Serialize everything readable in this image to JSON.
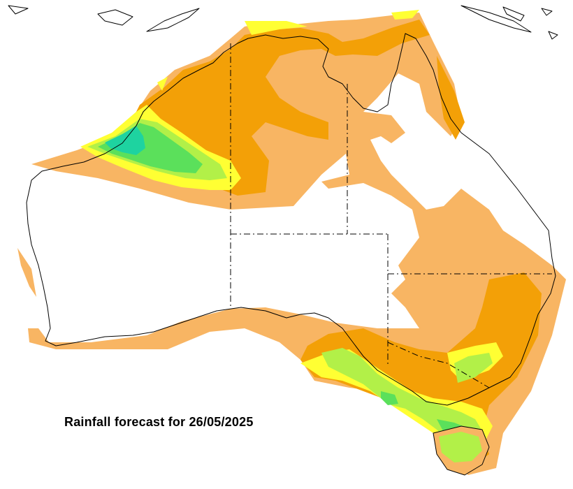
{
  "title": "Rainfall forecast for 26/05/2025",
  "legend_colors": {
    "lowest": "#f8b563",
    "low": "#f3a007",
    "moderate": "#ffff33",
    "moderate_high": "#b2f048",
    "high": "#5be05b",
    "highest": "#1ed3a0"
  }
}
